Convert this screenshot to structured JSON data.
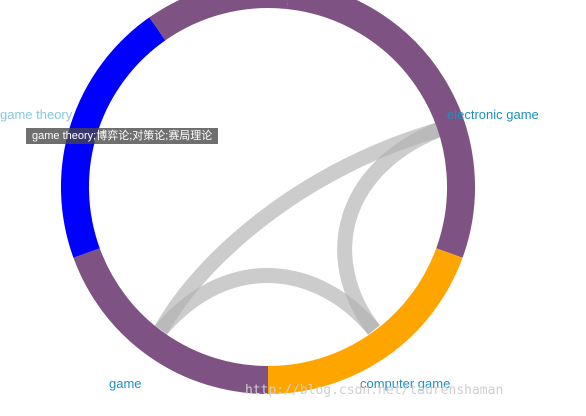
{
  "diagram": {
    "nodes": [
      {
        "id": "game_theory",
        "label": "game theory",
        "color": "#0000ff"
      },
      {
        "id": "electronic_game",
        "label": "electronic game",
        "color": "#7e5282"
      },
      {
        "id": "computer_game",
        "label": "computer game",
        "color": "#ffa500"
      },
      {
        "id": "game",
        "label": "game",
        "color": "#7e5282"
      }
    ],
    "links": [
      {
        "source": "electronic_game",
        "target": "game",
        "color": "#b0b0b0"
      },
      {
        "source": "electronic_game",
        "target": "computer_game",
        "color": "#b0b0b0"
      },
      {
        "source": "game",
        "target": "computer_game",
        "color": "#b0b0b0"
      }
    ],
    "tooltip": "game theory;博弈论;对策论;赛局理论"
  },
  "watermark": "http://blog.csdn.net/taurenshaman"
}
